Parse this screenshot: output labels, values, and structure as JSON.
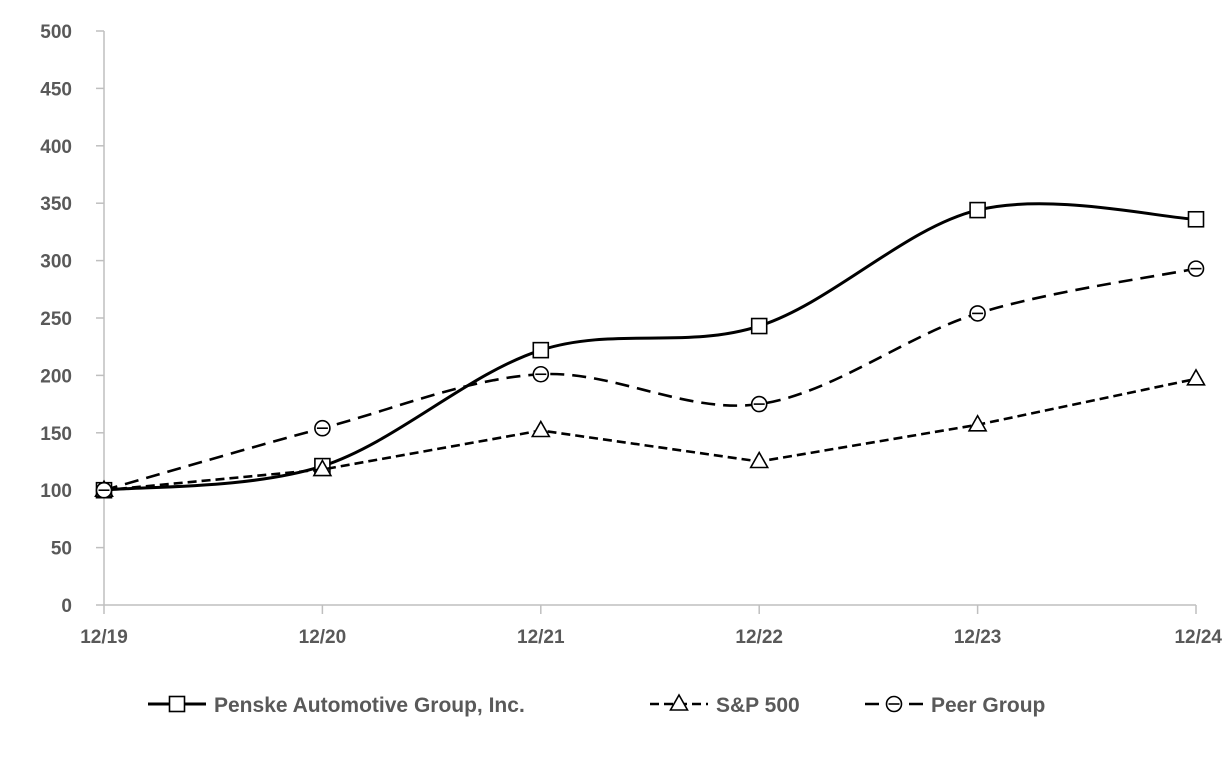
{
  "chart_data": {
    "type": "line",
    "title": "",
    "xlabel": "",
    "ylabel": "",
    "categories": [
      "12/19",
      "12/20",
      "12/21",
      "12/22",
      "12/23",
      "12/24"
    ],
    "ylim": [
      0,
      500
    ],
    "yticks": [
      0,
      50,
      100,
      150,
      200,
      250,
      300,
      350,
      400,
      450,
      500
    ],
    "grid": false,
    "legend_position": "bottom",
    "series": [
      {
        "name": "Penske Automotive Group, Inc.",
        "values": [
          100,
          121,
          222,
          243,
          344,
          336
        ],
        "marker": "square",
        "line": "solid",
        "smooth": true
      },
      {
        "name": "S&P 500",
        "values": [
          100,
          118,
          152,
          125,
          157,
          197
        ],
        "marker": "triangle",
        "line": "dashed",
        "smooth": false
      },
      {
        "name": "Peer Group",
        "values": [
          100,
          154,
          201,
          175,
          254,
          293
        ],
        "marker": "circle",
        "line": "dashed",
        "smooth": true
      }
    ],
    "colors": {
      "line": "#000000",
      "axis": "#bfbfbf",
      "text": "#595959"
    }
  }
}
